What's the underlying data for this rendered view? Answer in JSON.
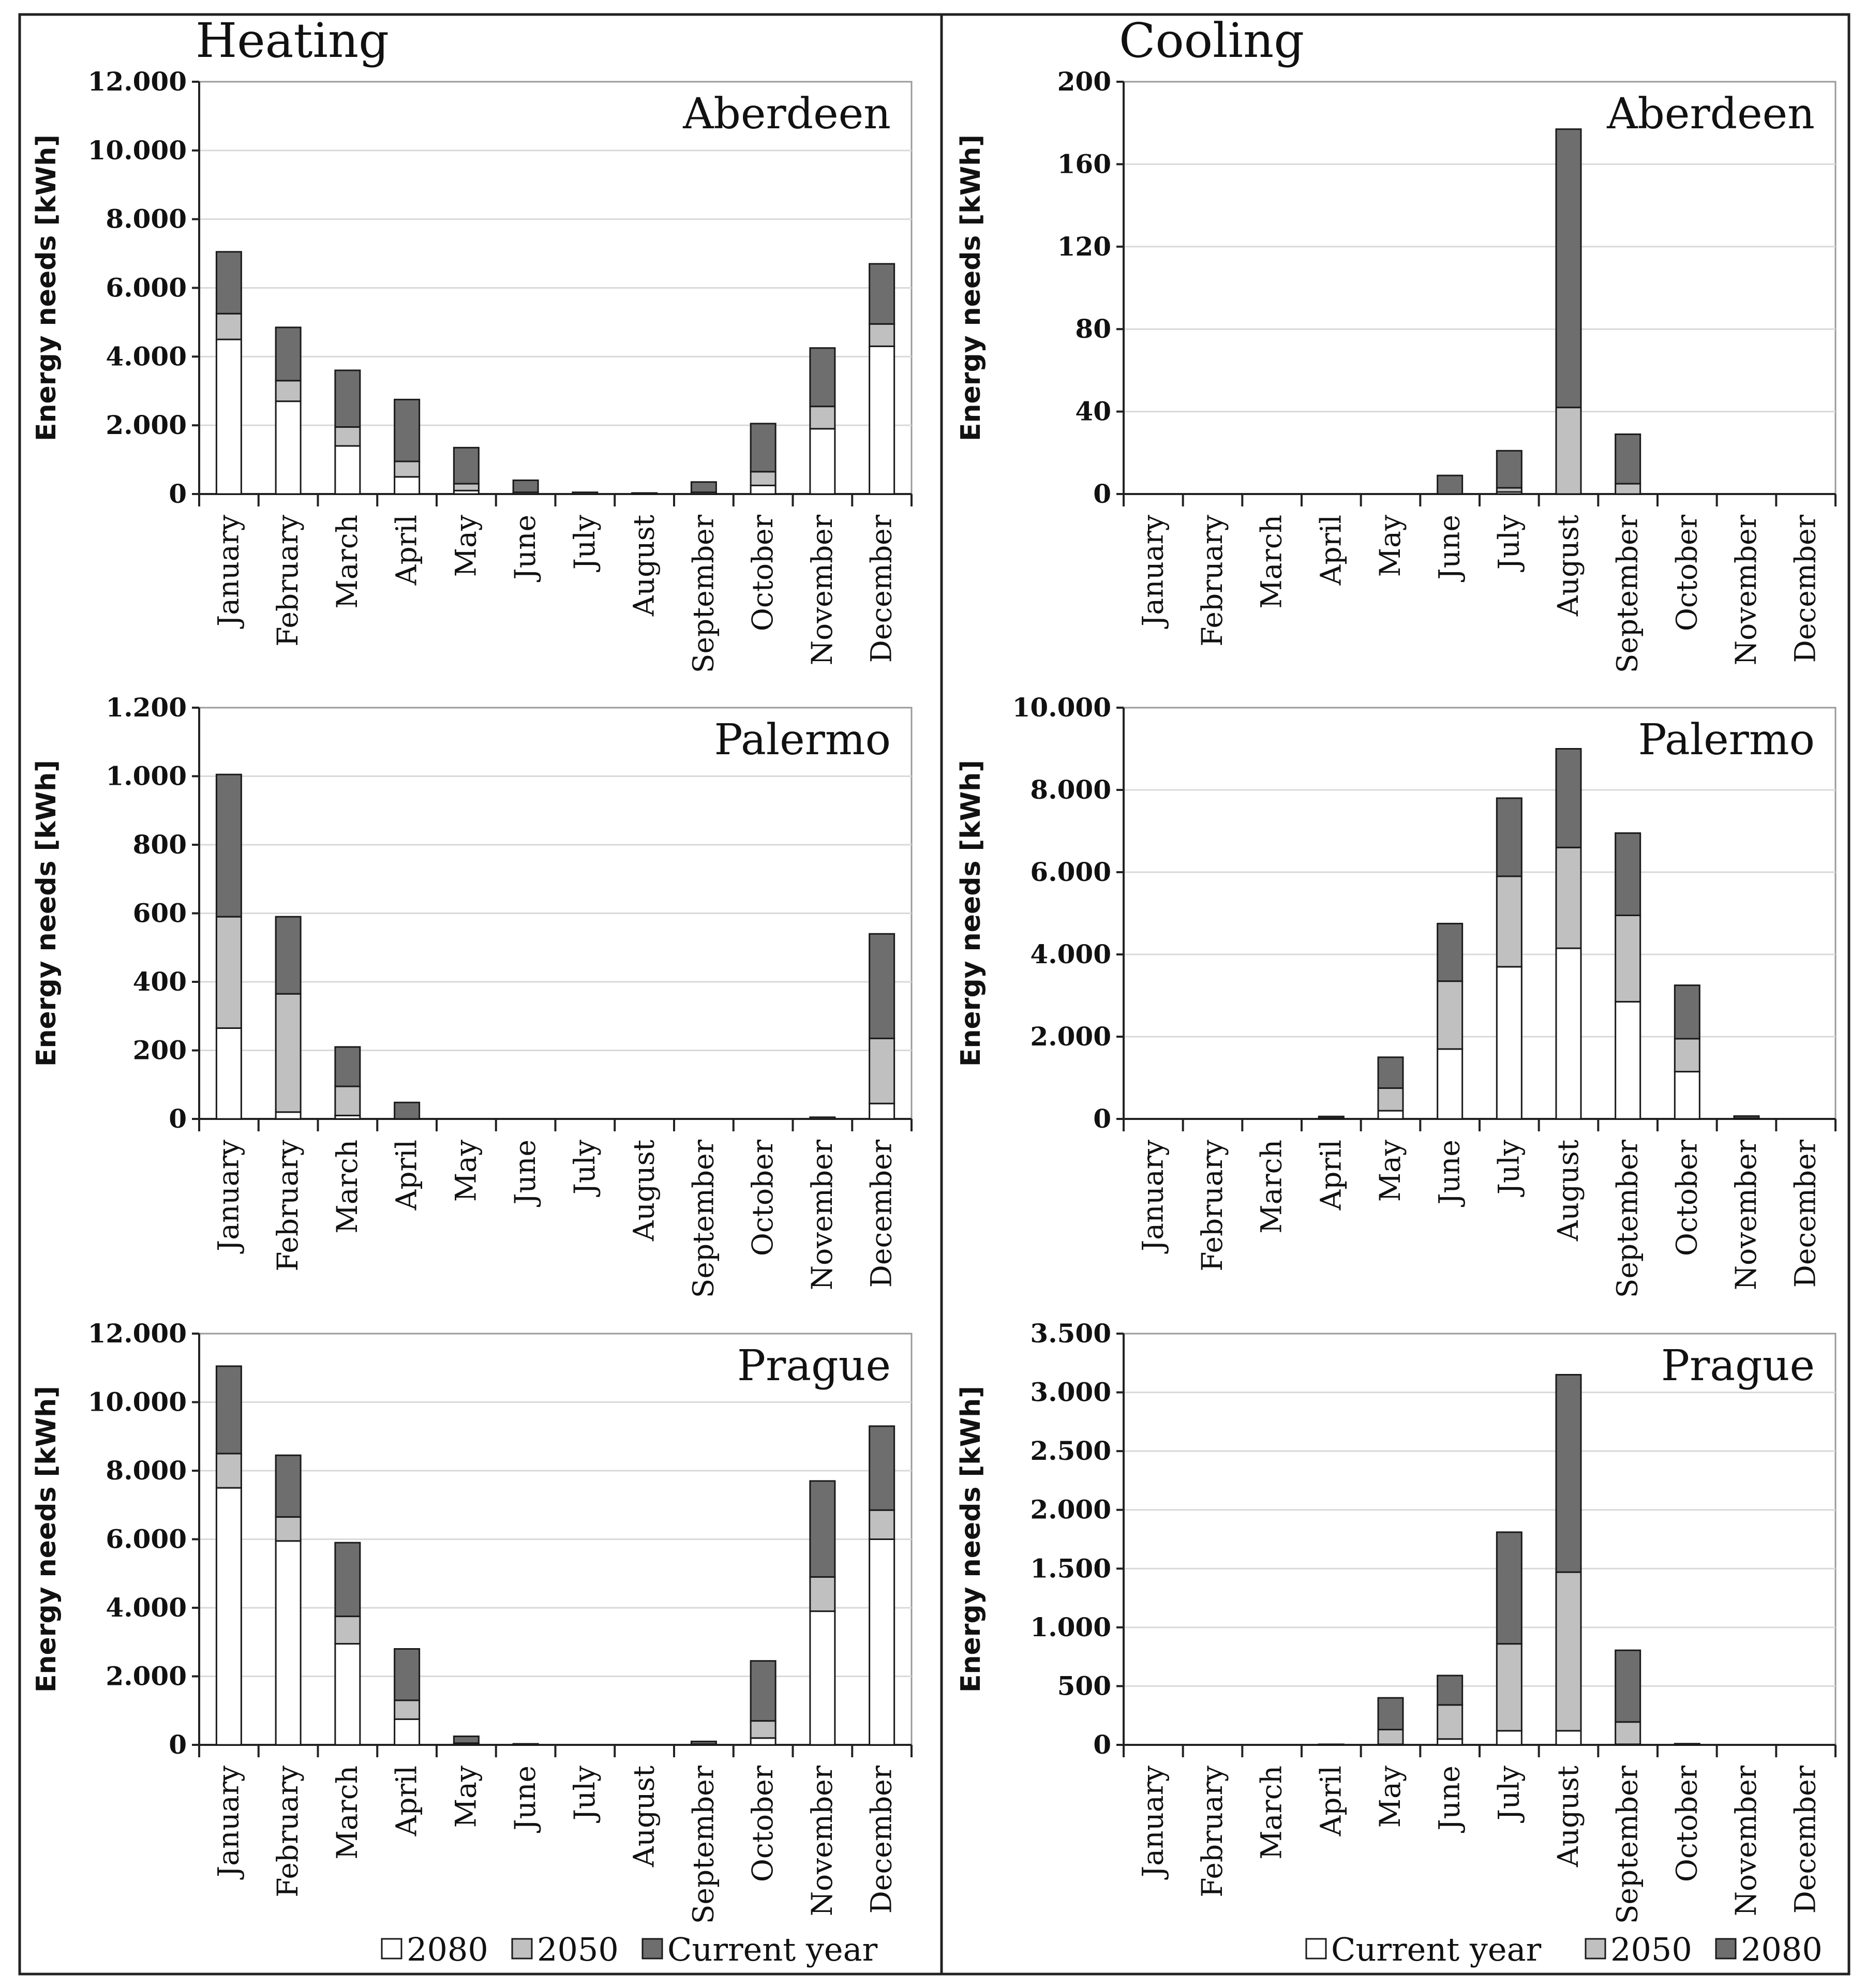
{
  "figure": {
    "left_title": "Heating",
    "right_title": "Cooling",
    "colors": {
      "2080_heating": "#ffffff",
      "2050": "#c0c0c0",
      "current_heating": "#6e6e6e",
      "current_cooling": "#ffffff",
      "2080_cooling": "#6e6e6e",
      "grid": "#d9d9d9",
      "frame": "#222222"
    }
  },
  "legends": {
    "heating": [
      {
        "label": "2080",
        "color": "#ffffff"
      },
      {
        "label": "2050",
        "color": "#c0c0c0"
      },
      {
        "label": "Current year",
        "color": "#6e6e6e"
      }
    ],
    "cooling": [
      {
        "label": "Current year",
        "color": "#ffffff"
      },
      {
        "label": "2050",
        "color": "#c0c0c0"
      },
      {
        "label": "2080",
        "color": "#6e6e6e"
      }
    ]
  },
  "chart_data": [
    {
      "id": "heating-aberdeen",
      "type": "bar",
      "stacked": true,
      "title": "Aberdeen",
      "panel": "Heating",
      "ylabel": "Energy needs  [kWh]",
      "xlabel": "",
      "categories": [
        "January",
        "February",
        "March",
        "April",
        "May",
        "June",
        "July",
        "August",
        "September",
        "October",
        "November",
        "December"
      ],
      "ylim": [
        0,
        12000
      ],
      "yticks": [
        0,
        2000,
        4000,
        6000,
        8000,
        10000,
        12000
      ],
      "ytick_labels": [
        "0",
        "2.000",
        "4.000",
        "6.000",
        "8.000",
        "10.000",
        "12.000"
      ],
      "series": [
        {
          "name": "2080",
          "color": "#ffffff",
          "values": [
            4500,
            2700,
            1400,
            500,
            100,
            0,
            0,
            0,
            0,
            250,
            1900,
            4300
          ]
        },
        {
          "name": "2050",
          "color": "#c0c0c0",
          "values": [
            750,
            600,
            550,
            450,
            200,
            50,
            0,
            0,
            50,
            400,
            650,
            650
          ]
        },
        {
          "name": "Current year",
          "color": "#6e6e6e",
          "values": [
            1800,
            1550,
            1650,
            1800,
            1050,
            350,
            50,
            30,
            300,
            1400,
            1700,
            1750
          ]
        }
      ]
    },
    {
      "id": "cooling-aberdeen",
      "type": "bar",
      "stacked": true,
      "title": "Aberdeen",
      "panel": "Cooling",
      "ylabel": "Energy needs  [kWh]",
      "xlabel": "",
      "categories": [
        "January",
        "February",
        "March",
        "April",
        "May",
        "June",
        "July",
        "August",
        "September",
        "October",
        "November",
        "December"
      ],
      "ylim": [
        0,
        200
      ],
      "yticks": [
        0,
        40,
        80,
        120,
        160,
        200
      ],
      "ytick_labels": [
        "0",
        "40",
        "80",
        "120",
        "160",
        "200"
      ],
      "series": [
        {
          "name": "Current year",
          "color": "#ffffff",
          "values": [
            0,
            0,
            0,
            0,
            0,
            0,
            1,
            0,
            0,
            0,
            0,
            0
          ]
        },
        {
          "name": "2050",
          "color": "#c0c0c0",
          "values": [
            0,
            0,
            0,
            0,
            0,
            0,
            2,
            42,
            5,
            0,
            0,
            0
          ]
        },
        {
          "name": "2080",
          "color": "#6e6e6e",
          "values": [
            0,
            0,
            0,
            0,
            0,
            9,
            18,
            135,
            24,
            0,
            0,
            0
          ]
        }
      ]
    },
    {
      "id": "heating-palermo",
      "type": "bar",
      "stacked": true,
      "title": "Palermo",
      "panel": "Heating",
      "ylabel": "Energy needs  [kWh]",
      "xlabel": "",
      "categories": [
        "January",
        "February",
        "March",
        "April",
        "May",
        "June",
        "July",
        "August",
        "September",
        "October",
        "November",
        "December"
      ],
      "ylim": [
        0,
        1200
      ],
      "yticks": [
        0,
        200,
        400,
        600,
        800,
        1000,
        1200
      ],
      "ytick_labels": [
        "0",
        "200",
        "400",
        "600",
        "800",
        "1.000",
        "1.200"
      ],
      "series": [
        {
          "name": "2080",
          "color": "#ffffff",
          "values": [
            265,
            20,
            10,
            0,
            0,
            0,
            0,
            0,
            0,
            0,
            0,
            45
          ]
        },
        {
          "name": "2050",
          "color": "#c0c0c0",
          "values": [
            325,
            345,
            85,
            0,
            0,
            0,
            0,
            0,
            0,
            0,
            0,
            190
          ]
        },
        {
          "name": "Current year",
          "color": "#6e6e6e",
          "values": [
            415,
            225,
            115,
            48,
            0,
            0,
            0,
            0,
            0,
            0,
            5,
            305
          ]
        }
      ]
    },
    {
      "id": "cooling-palermo",
      "type": "bar",
      "stacked": true,
      "title": "Palermo",
      "panel": "Cooling",
      "ylabel": "Energy needs  [kWh]",
      "xlabel": "",
      "categories": [
        "January",
        "February",
        "March",
        "April",
        "May",
        "June",
        "July",
        "August",
        "September",
        "October",
        "November",
        "December"
      ],
      "ylim": [
        0,
        10000
      ],
      "yticks": [
        0,
        2000,
        4000,
        6000,
        8000,
        10000
      ],
      "ytick_labels": [
        "0",
        "2.000",
        "4.000",
        "6.000",
        "8.000",
        "10.000"
      ],
      "series": [
        {
          "name": "Current year",
          "color": "#ffffff",
          "values": [
            0,
            0,
            0,
            0,
            200,
            1700,
            3700,
            4150,
            2850,
            1150,
            0,
            0
          ]
        },
        {
          "name": "2050",
          "color": "#c0c0c0",
          "values": [
            0,
            0,
            0,
            20,
            550,
            1650,
            2200,
            2450,
            2100,
            800,
            20,
            0
          ]
        },
        {
          "name": "2080",
          "color": "#6e6e6e",
          "values": [
            0,
            0,
            0,
            40,
            750,
            1400,
            1900,
            2400,
            2000,
            1300,
            50,
            0
          ]
        }
      ]
    },
    {
      "id": "heating-prague",
      "type": "bar",
      "stacked": true,
      "title": "Prague",
      "panel": "Heating",
      "ylabel": "Energy needs  [kWh]",
      "xlabel": "",
      "categories": [
        "January",
        "February",
        "March",
        "April",
        "May",
        "June",
        "July",
        "August",
        "September",
        "October",
        "November",
        "December"
      ],
      "ylim": [
        0,
        12000
      ],
      "yticks": [
        0,
        2000,
        4000,
        6000,
        8000,
        10000,
        12000
      ],
      "ytick_labels": [
        "0",
        "2.000",
        "4.000",
        "6.000",
        "8.000",
        "10.000",
        "12.000"
      ],
      "series": [
        {
          "name": "2080",
          "color": "#ffffff",
          "values": [
            7500,
            5950,
            2950,
            750,
            20,
            0,
            0,
            0,
            0,
            200,
            3900,
            6000
          ]
        },
        {
          "name": "2050",
          "color": "#c0c0c0",
          "values": [
            1000,
            700,
            800,
            550,
            30,
            0,
            0,
            0,
            20,
            500,
            1000,
            850
          ]
        },
        {
          "name": "Current year",
          "color": "#6e6e6e",
          "values": [
            2550,
            1800,
            2150,
            1500,
            200,
            30,
            0,
            0,
            80,
            1750,
            2800,
            2450
          ]
        }
      ]
    },
    {
      "id": "cooling-prague",
      "type": "bar",
      "stacked": true,
      "title": "Prague",
      "panel": "Cooling",
      "ylabel": "Energy needs  [kWh]",
      "xlabel": "",
      "categories": [
        "January",
        "February",
        "March",
        "April",
        "May",
        "June",
        "July",
        "August",
        "September",
        "October",
        "November",
        "December"
      ],
      "ylim": [
        0,
        3500
      ],
      "yticks": [
        0,
        500,
        1000,
        1500,
        2000,
        2500,
        3000,
        3500
      ],
      "ytick_labels": [
        "0",
        "500",
        "1.000",
        "1.500",
        "2.000",
        "2.500",
        "3.000",
        "3.500"
      ],
      "series": [
        {
          "name": "Current year",
          "color": "#ffffff",
          "values": [
            0,
            0,
            0,
            0,
            5,
            50,
            120,
            120,
            5,
            0,
            0,
            0
          ]
        },
        {
          "name": "2050",
          "color": "#c0c0c0",
          "values": [
            0,
            0,
            0,
            0,
            125,
            290,
            740,
            1350,
            190,
            0,
            0,
            0
          ]
        },
        {
          "name": "2080",
          "color": "#6e6e6e",
          "values": [
            0,
            0,
            0,
            5,
            270,
            250,
            950,
            1680,
            610,
            10,
            0,
            0
          ]
        }
      ]
    }
  ]
}
